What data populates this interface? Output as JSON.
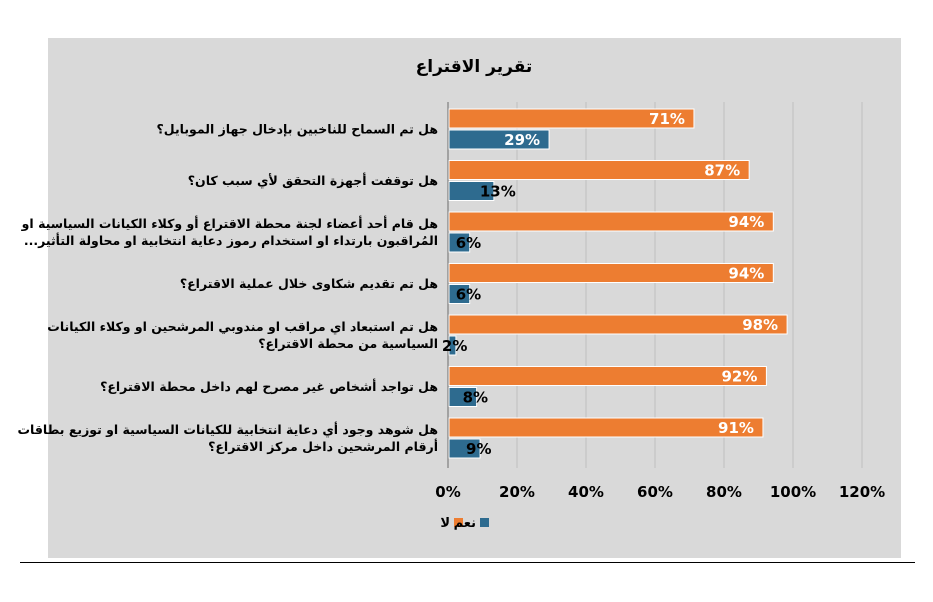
{
  "chart_data": {
    "type": "bar",
    "orientation": "horizontal",
    "title": "تقرير الاقتراع",
    "categories": [
      [
        "هل تم السماح للناخبين بإدخال جهاز الموبايل؟"
      ],
      [
        "هل توقفت أجهزة التحقق لأي سبب كان؟"
      ],
      [
        "هل قام أحد أعضاء لجنة محطة الاقتراع أو وكلاء الكيانات السياسية او",
        "المُراقبون بارتداء او استخدام رموز دعاية انتخابية او محاولة التأثير..."
      ],
      [
        "هل تم تقديم شكاوى خلال عملية الاقتراع؟"
      ],
      [
        "هل تم استبعاد اي مراقب او مندوبي المرشحين او وكلاء الكيانات",
        "السياسية من محطة الاقتراع؟"
      ],
      [
        "هل تواجد أشخاص غير مصرح لهم داخل محطة الاقتراع؟"
      ],
      [
        "هل شوهد وجود أي دعاية انتخابية للكيانات السياسية او توزيع بطاقات",
        "أرقام المرشحين داخل مركز الاقتراع؟"
      ]
    ],
    "series": [
      {
        "name": "لا",
        "color": "#ed7d31",
        "values": [
          71,
          87,
          94,
          94,
          98,
          92,
          91
        ]
      },
      {
        "name": "نعم",
        "color": "#2e6b8f",
        "values": [
          29,
          13,
          6,
          6,
          2,
          8,
          9
        ]
      }
    ],
    "value_suffix": "%",
    "xlim": [
      0,
      120
    ],
    "xticks": [
      0,
      20,
      40,
      60,
      80,
      100,
      120
    ],
    "xtick_labels": [
      "0%",
      "20%",
      "40%",
      "60%",
      "80%",
      "100%",
      "120%"
    ],
    "grid": true,
    "legend_position": "bottom"
  }
}
